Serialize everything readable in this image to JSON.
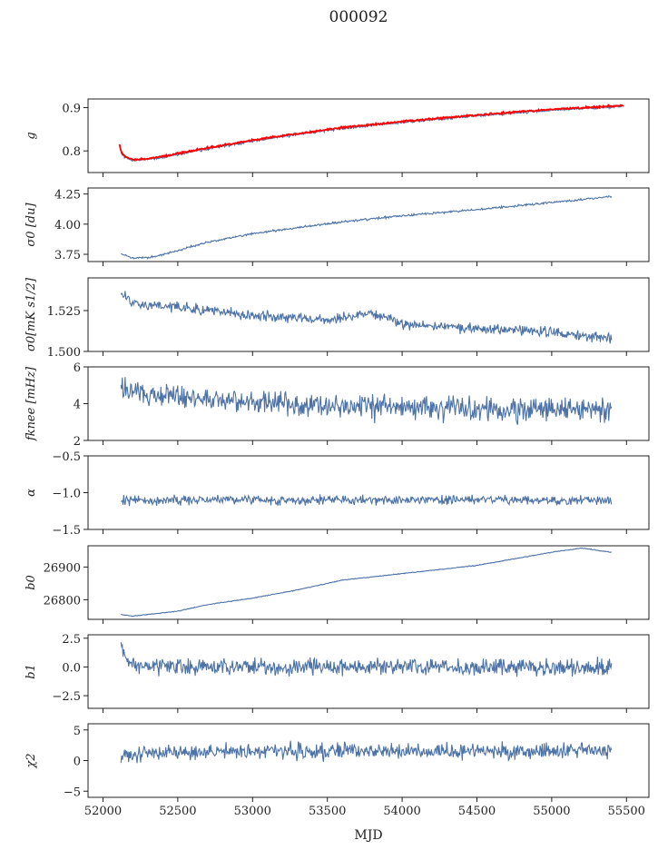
{
  "figure": {
    "title": "000092"
  },
  "colors": {
    "series": "#4c72a6",
    "overlay": "#ff0000",
    "axis": "#222222"
  },
  "chart_data": [
    {
      "type": "line",
      "id": "g",
      "ylabel": "g",
      "ylim": [
        0.75,
        0.92
      ],
      "yticks": [
        0.8,
        0.9
      ],
      "ytick_labels": [
        "0.8",
        "0.9"
      ],
      "xlim": [
        51900,
        55650
      ],
      "xticks": [
        52000,
        52500,
        53000,
        53500,
        54000,
        54500,
        55000,
        55500
      ],
      "series": [
        {
          "color": "#4c72a6",
          "x_range": [
            52120,
            55470
          ],
          "keypoints": [
            [
              52120,
              0.795
            ],
            [
              52150,
              0.784
            ],
            [
              52200,
              0.778
            ],
            [
              52300,
              0.78
            ],
            [
              52500,
              0.792
            ],
            [
              52700,
              0.805
            ],
            [
              53000,
              0.823
            ],
            [
              53300,
              0.838
            ],
            [
              53600,
              0.852
            ],
            [
              54000,
              0.866
            ],
            [
              54500,
              0.881
            ],
            [
              55000,
              0.894
            ],
            [
              55470,
              0.903
            ]
          ],
          "noise": 0.002,
          "seed": 1
        },
        {
          "color": "#ff0000",
          "x_range": [
            52110,
            55480
          ],
          "keypoints": [
            [
              52110,
              0.815
            ],
            [
              52125,
              0.795
            ],
            [
              52150,
              0.786
            ],
            [
              52200,
              0.78
            ],
            [
              52300,
              0.782
            ],
            [
              52500,
              0.794
            ],
            [
              52700,
              0.807
            ],
            [
              53000,
              0.825
            ],
            [
              53300,
              0.84
            ],
            [
              53600,
              0.854
            ],
            [
              54000,
              0.868
            ],
            [
              54500,
              0.883
            ],
            [
              55000,
              0.896
            ],
            [
              55480,
              0.905
            ]
          ],
          "noise": 0.0015,
          "seed": 2
        }
      ]
    },
    {
      "type": "line",
      "id": "sigma0",
      "ylabel": "σ0 [du]",
      "ylim": [
        3.69,
        4.3
      ],
      "yticks": [
        3.75,
        4.0,
        4.25
      ],
      "ytick_labels": [
        "3.75",
        "4.00",
        "4.25"
      ],
      "xlim": [
        51900,
        55650
      ],
      "xticks": [
        52000,
        52500,
        53000,
        53500,
        54000,
        54500,
        55000,
        55500
      ],
      "series": [
        {
          "color": "#4c72a6",
          "x_range": [
            52120,
            55400
          ],
          "keypoints": [
            [
              52120,
              3.75
            ],
            [
              52200,
              3.72
            ],
            [
              52300,
              3.72
            ],
            [
              52500,
              3.78
            ],
            [
              52700,
              3.85
            ],
            [
              53000,
              3.92
            ],
            [
              53300,
              3.97
            ],
            [
              53600,
              4.02
            ],
            [
              54000,
              4.07
            ],
            [
              54500,
              4.12
            ],
            [
              55000,
              4.18
            ],
            [
              55400,
              4.23
            ]
          ],
          "noise": 0.006,
          "seed": 3
        }
      ]
    },
    {
      "type": "line",
      "id": "sigma-mk",
      "ylabel": "σ0[mK s1/2]",
      "ylim": [
        1.5,
        1.545
      ],
      "yticks": [
        1.5,
        1.525
      ],
      "ytick_labels": [
        "1.500",
        "1.525"
      ],
      "xlim": [
        51900,
        55650
      ],
      "xticks": [
        52000,
        52500,
        53000,
        53500,
        54000,
        54500,
        55000,
        55500
      ],
      "series": [
        {
          "color": "#4c72a6",
          "x_range": [
            52120,
            55400
          ],
          "keypoints": [
            [
              52120,
              1.535
            ],
            [
              52200,
              1.53
            ],
            [
              52400,
              1.528
            ],
            [
              52700,
              1.525
            ],
            [
              53000,
              1.522
            ],
            [
              53500,
              1.519
            ],
            [
              53800,
              1.524
            ],
            [
              54000,
              1.517
            ],
            [
              54500,
              1.514
            ],
            [
              55000,
              1.512
            ],
            [
              55400,
              1.508
            ]
          ],
          "noise": 0.0022,
          "seed": 4
        }
      ]
    },
    {
      "type": "line",
      "id": "fknee",
      "ylabel": "fknee [mHz]",
      "ylim": [
        2,
        6
      ],
      "yticks": [
        2,
        4,
        6
      ],
      "ytick_labels": [
        "2",
        "4",
        "6"
      ],
      "xlim": [
        51900,
        55650
      ],
      "xticks": [
        52000,
        52500,
        53000,
        53500,
        54000,
        54500,
        55000,
        55500
      ],
      "series": [
        {
          "color": "#4c72a6",
          "x_range": [
            52120,
            55400
          ],
          "keypoints": [
            [
              52120,
              4.8
            ],
            [
              52300,
              4.5
            ],
            [
              52600,
              4.3
            ],
            [
              53000,
              4.1
            ],
            [
              53500,
              3.9
            ],
            [
              54000,
              3.8
            ],
            [
              54500,
              3.7
            ],
            [
              55000,
              3.7
            ],
            [
              55400,
              3.6
            ]
          ],
          "noise": 0.45,
          "seed": 5
        }
      ]
    },
    {
      "type": "line",
      "id": "alpha",
      "ylabel": "α",
      "ylim": [
        -1.5,
        -0.5
      ],
      "yticks": [
        -1.5,
        -1.0,
        -0.5
      ],
      "ytick_labels": [
        "−1.5",
        "−1.0",
        "−0.5"
      ],
      "xlim": [
        51900,
        55650
      ],
      "xticks": [
        52000,
        52500,
        53000,
        53500,
        54000,
        54500,
        55000,
        55500
      ],
      "series": [
        {
          "color": "#4c72a6",
          "x_range": [
            52120,
            55400
          ],
          "keypoints": [
            [
              52120,
              -1.1
            ],
            [
              53000,
              -1.1
            ],
            [
              54000,
              -1.1
            ],
            [
              55400,
              -1.1
            ]
          ],
          "noise": 0.045,
          "seed": 6
        }
      ]
    },
    {
      "type": "line",
      "id": "b0",
      "ylabel": "b0",
      "ylim": [
        26740,
        26965
      ],
      "yticks": [
        26800,
        26900
      ],
      "ytick_labels": [
        "26800",
        "26900"
      ],
      "xlim": [
        51900,
        55650
      ],
      "xticks": [
        52000,
        52500,
        53000,
        53500,
        54000,
        54500,
        55000,
        55500
      ],
      "series": [
        {
          "color": "#4c72a6",
          "x_range": [
            52120,
            55400
          ],
          "keypoints": [
            [
              52120,
              26755
            ],
            [
              52200,
              26750
            ],
            [
              52500,
              26765
            ],
            [
              52700,
              26785
            ],
            [
              53000,
              26805
            ],
            [
              53300,
              26830
            ],
            [
              53600,
              26860
            ],
            [
              54000,
              26880
            ],
            [
              54500,
              26905
            ],
            [
              55000,
              26945
            ],
            [
              55200,
              26958
            ],
            [
              55400,
              26945
            ]
          ],
          "noise": 0.8,
          "seed": 7
        }
      ]
    },
    {
      "type": "line",
      "id": "b1",
      "ylabel": "b1",
      "ylim": [
        -3.6,
        2.8
      ],
      "yticks": [
        -2.5,
        0.0,
        2.5
      ],
      "ytick_labels": [
        "−2.5",
        "0.0",
        "2.5"
      ],
      "xlim": [
        51900,
        55650
      ],
      "xticks": [
        52000,
        52500,
        53000,
        53500,
        54000,
        54500,
        55000,
        55500
      ],
      "series": [
        {
          "color": "#4c72a6",
          "x_range": [
            52120,
            55400
          ],
          "keypoints": [
            [
              52120,
              1.8
            ],
            [
              52180,
              0.3
            ],
            [
              52300,
              0.0
            ],
            [
              53000,
              0.0
            ],
            [
              54000,
              0.0
            ],
            [
              55400,
              0.0
            ]
          ],
          "noise": 0.5,
          "seed": 8
        }
      ]
    },
    {
      "type": "line",
      "id": "chi2",
      "ylabel": "χ2",
      "ylim": [
        -6,
        6
      ],
      "yticks": [
        -5,
        0,
        5
      ],
      "ytick_labels": [
        "−5",
        "0",
        "5"
      ],
      "xlabel": "MJD",
      "xlim": [
        51900,
        55650
      ],
      "xticks": [
        52000,
        52500,
        53000,
        53500,
        54000,
        54500,
        55000,
        55500
      ],
      "xtick_labels": [
        "52000",
        "52500",
        "53000",
        "53500",
        "54000",
        "54500",
        "55000",
        "55500"
      ],
      "series": [
        {
          "color": "#4c72a6",
          "x_range": [
            52120,
            55400
          ],
          "keypoints": [
            [
              52120,
              1.0
            ],
            [
              53000,
              1.5
            ],
            [
              54000,
              1.5
            ],
            [
              55400,
              1.5
            ]
          ],
          "noise": 0.9,
          "seed": 9
        }
      ]
    }
  ]
}
